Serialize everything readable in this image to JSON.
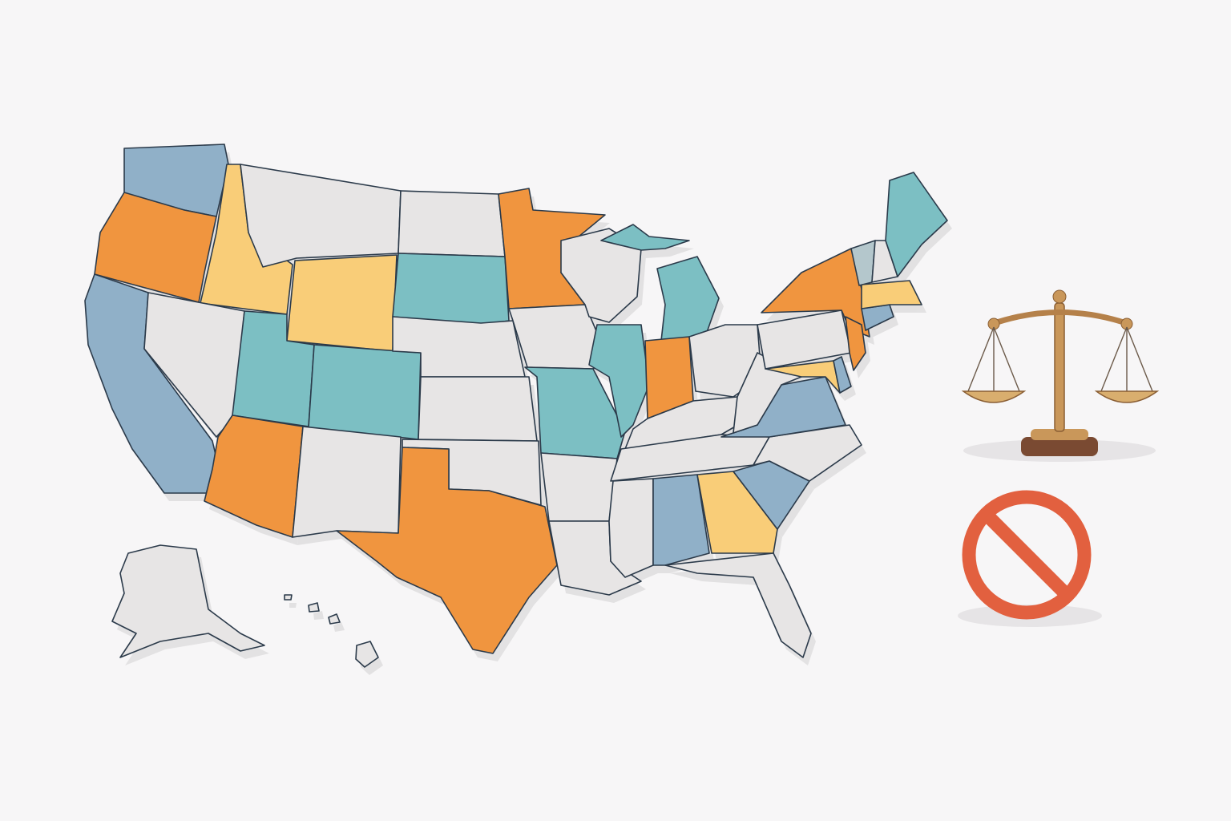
{
  "palette": {
    "orange": "#F0953F",
    "teal": "#7CBFC3",
    "blue": "#90B0C8",
    "yellow": "#F9CD78",
    "grey": "#E7E5E5",
    "slate": "#B4C7CC",
    "outline": "#2B3A4A",
    "background": "#F7F6F7",
    "prohibition_red": "#E2603F",
    "scale_gold": "#C9975A",
    "scale_base": "#7A4A32"
  },
  "states": {
    "WA": "blue",
    "OR": "orange",
    "CA": "blue",
    "ID": "yellow",
    "MT": "grey",
    "WY": "yellow",
    "NV": "grey",
    "UT": "teal",
    "AZ": "orange",
    "CO": "teal",
    "NM": "grey",
    "ND": "grey",
    "SD": "teal",
    "NE": "grey",
    "KS": "grey",
    "OK": "grey",
    "TX": "orange",
    "MN": "orange",
    "IA": "grey",
    "MO": "teal",
    "AR": "grey",
    "LA": "grey",
    "WI": "grey",
    "IL": "teal",
    "MI_UP": "teal",
    "MI": "teal",
    "IN": "orange",
    "OH": "grey",
    "KY": "grey",
    "TN": "grey",
    "MS": "grey",
    "AL": "blue",
    "GA": "yellow",
    "FL": "grey",
    "SC": "blue",
    "NC": "grey",
    "VA": "blue",
    "WV": "grey",
    "PA": "grey",
    "NY": "orange",
    "NJ": "orange",
    "MD": "yellow",
    "DE": "blue",
    "CT": "blue",
    "MA": "yellow",
    "VT": "slate",
    "NH": "grey",
    "ME": "teal",
    "AK": "grey",
    "HI": "grey"
  },
  "icons": {
    "justice": "scales-of-justice-icon",
    "prohibited": "prohibition-icon"
  }
}
